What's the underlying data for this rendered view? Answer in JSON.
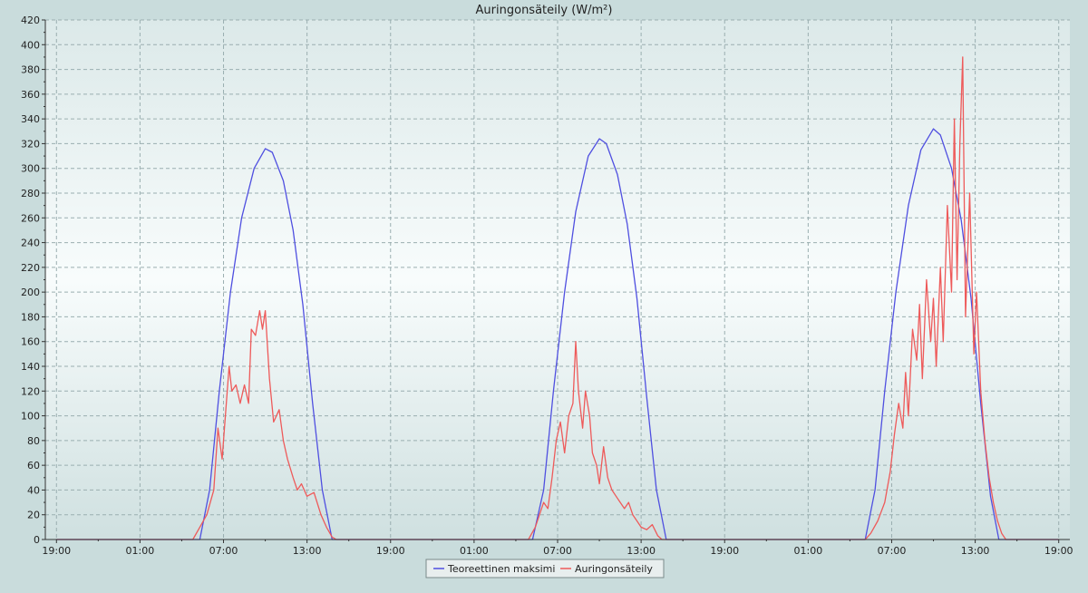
{
  "chart_data": {
    "type": "line",
    "title": "Auringonsäteily (W/m²)",
    "xlabel": "",
    "ylabel": "",
    "ylim": [
      0,
      420
    ],
    "y_ticks": [
      0,
      20,
      40,
      60,
      80,
      100,
      120,
      140,
      160,
      180,
      200,
      220,
      240,
      260,
      280,
      300,
      320,
      340,
      360,
      380,
      400,
      420
    ],
    "x_unit": "hours elapsed from start (19:00)",
    "xlim": [
      -0.8,
      72.8
    ],
    "x_ticks": [
      {
        "x": 0,
        "label": "19:00"
      },
      {
        "x": 6,
        "label": "01:00"
      },
      {
        "x": 12,
        "label": "07:00"
      },
      {
        "x": 18,
        "label": "13:00"
      },
      {
        "x": 24,
        "label": "19:00"
      },
      {
        "x": 30,
        "label": "01:00"
      },
      {
        "x": 36,
        "label": "07:00"
      },
      {
        "x": 42,
        "label": "13:00"
      },
      {
        "x": 48,
        "label": "19:00"
      },
      {
        "x": 54,
        "label": "01:00"
      },
      {
        "x": 60,
        "label": "07:00"
      },
      {
        "x": 66,
        "label": "13:00"
      },
      {
        "x": 72,
        "label": "19:00"
      }
    ],
    "grid": true,
    "legend_position": "bottom-center",
    "series": [
      {
        "name": "Teoreettinen maksimi",
        "color": "#4f4fe0",
        "points": [
          [
            0,
            0
          ],
          [
            10.3,
            0
          ],
          [
            11,
            40
          ],
          [
            11.7,
            120
          ],
          [
            12.5,
            200
          ],
          [
            13.3,
            260
          ],
          [
            14.2,
            300
          ],
          [
            15,
            316
          ],
          [
            15.5,
            313
          ],
          [
            16.3,
            290
          ],
          [
            17,
            250
          ],
          [
            17.7,
            190
          ],
          [
            18.4,
            110
          ],
          [
            19.1,
            40
          ],
          [
            19.8,
            0
          ],
          [
            34.2,
            0
          ],
          [
            35,
            40
          ],
          [
            35.7,
            120
          ],
          [
            36.5,
            200
          ],
          [
            37.3,
            265
          ],
          [
            38.2,
            310
          ],
          [
            39,
            324
          ],
          [
            39.5,
            320
          ],
          [
            40.3,
            295
          ],
          [
            41,
            255
          ],
          [
            41.7,
            195
          ],
          [
            42.4,
            115
          ],
          [
            43.1,
            40
          ],
          [
            43.8,
            0
          ],
          [
            58.1,
            0
          ],
          [
            58.8,
            40
          ],
          [
            59.5,
            120
          ],
          [
            60.3,
            200
          ],
          [
            61.2,
            270
          ],
          [
            62.1,
            315
          ],
          [
            63,
            332
          ],
          [
            63.5,
            327
          ],
          [
            64.3,
            300
          ],
          [
            65,
            258
          ],
          [
            65.7,
            195
          ],
          [
            66.4,
            110
          ],
          [
            67.1,
            35
          ],
          [
            67.7,
            0
          ],
          [
            72,
            0
          ]
        ]
      },
      {
        "name": "Auringonsäteily",
        "color": "#ee5a5a",
        "points": [
          [
            0,
            0
          ],
          [
            9.8,
            0
          ],
          [
            10.3,
            10
          ],
          [
            10.8,
            20
          ],
          [
            11.3,
            40
          ],
          [
            11.6,
            90
          ],
          [
            11.9,
            65
          ],
          [
            12.2,
            110
          ],
          [
            12.4,
            140
          ],
          [
            12.6,
            120
          ],
          [
            12.9,
            125
          ],
          [
            13.2,
            110
          ],
          [
            13.5,
            125
          ],
          [
            13.8,
            110
          ],
          [
            14.0,
            170
          ],
          [
            14.3,
            165
          ],
          [
            14.6,
            185
          ],
          [
            14.8,
            170
          ],
          [
            15.0,
            185
          ],
          [
            15.3,
            130
          ],
          [
            15.6,
            95
          ],
          [
            16.0,
            105
          ],
          [
            16.3,
            80
          ],
          [
            16.6,
            65
          ],
          [
            17.0,
            50
          ],
          [
            17.3,
            40
          ],
          [
            17.6,
            45
          ],
          [
            18.0,
            35
          ],
          [
            18.5,
            38
          ],
          [
            19.0,
            20
          ],
          [
            19.4,
            10
          ],
          [
            19.8,
            2
          ],
          [
            20.1,
            0
          ],
          [
            33.9,
            0
          ],
          [
            34.4,
            10
          ],
          [
            35.0,
            30
          ],
          [
            35.3,
            25
          ],
          [
            35.6,
            50
          ],
          [
            35.9,
            80
          ],
          [
            36.2,
            95
          ],
          [
            36.5,
            70
          ],
          [
            36.8,
            100
          ],
          [
            37.1,
            110
          ],
          [
            37.3,
            160
          ],
          [
            37.5,
            120
          ],
          [
            37.8,
            90
          ],
          [
            38.0,
            120
          ],
          [
            38.3,
            100
          ],
          [
            38.5,
            70
          ],
          [
            38.8,
            60
          ],
          [
            39.0,
            45
          ],
          [
            39.3,
            75
          ],
          [
            39.6,
            50
          ],
          [
            39.9,
            40
          ],
          [
            40.2,
            35
          ],
          [
            40.5,
            30
          ],
          [
            40.8,
            25
          ],
          [
            41.1,
            30
          ],
          [
            41.4,
            20
          ],
          [
            41.7,
            15
          ],
          [
            42.0,
            10
          ],
          [
            42.4,
            8
          ],
          [
            42.8,
            12
          ],
          [
            43.2,
            3
          ],
          [
            43.5,
            0
          ],
          [
            58.1,
            0
          ],
          [
            58.5,
            5
          ],
          [
            59.0,
            15
          ],
          [
            59.5,
            30
          ],
          [
            59.9,
            55
          ],
          [
            60.2,
            85
          ],
          [
            60.5,
            110
          ],
          [
            60.8,
            90
          ],
          [
            61.0,
            135
          ],
          [
            61.2,
            100
          ],
          [
            61.5,
            170
          ],
          [
            61.8,
            145
          ],
          [
            62.0,
            190
          ],
          [
            62.2,
            130
          ],
          [
            62.5,
            210
          ],
          [
            62.8,
            160
          ],
          [
            63.0,
            195
          ],
          [
            63.2,
            140
          ],
          [
            63.5,
            220
          ],
          [
            63.7,
            160
          ],
          [
            64.0,
            270
          ],
          [
            64.3,
            200
          ],
          [
            64.5,
            340
          ],
          [
            64.7,
            210
          ],
          [
            64.9,
            320
          ],
          [
            65.1,
            390
          ],
          [
            65.3,
            180
          ],
          [
            65.6,
            280
          ],
          [
            65.9,
            150
          ],
          [
            66.1,
            200
          ],
          [
            66.4,
            120
          ],
          [
            66.7,
            80
          ],
          [
            67.0,
            50
          ],
          [
            67.3,
            30
          ],
          [
            67.6,
            15
          ],
          [
            67.9,
            5
          ],
          [
            68.2,
            0
          ],
          [
            72,
            0
          ]
        ]
      }
    ]
  }
}
